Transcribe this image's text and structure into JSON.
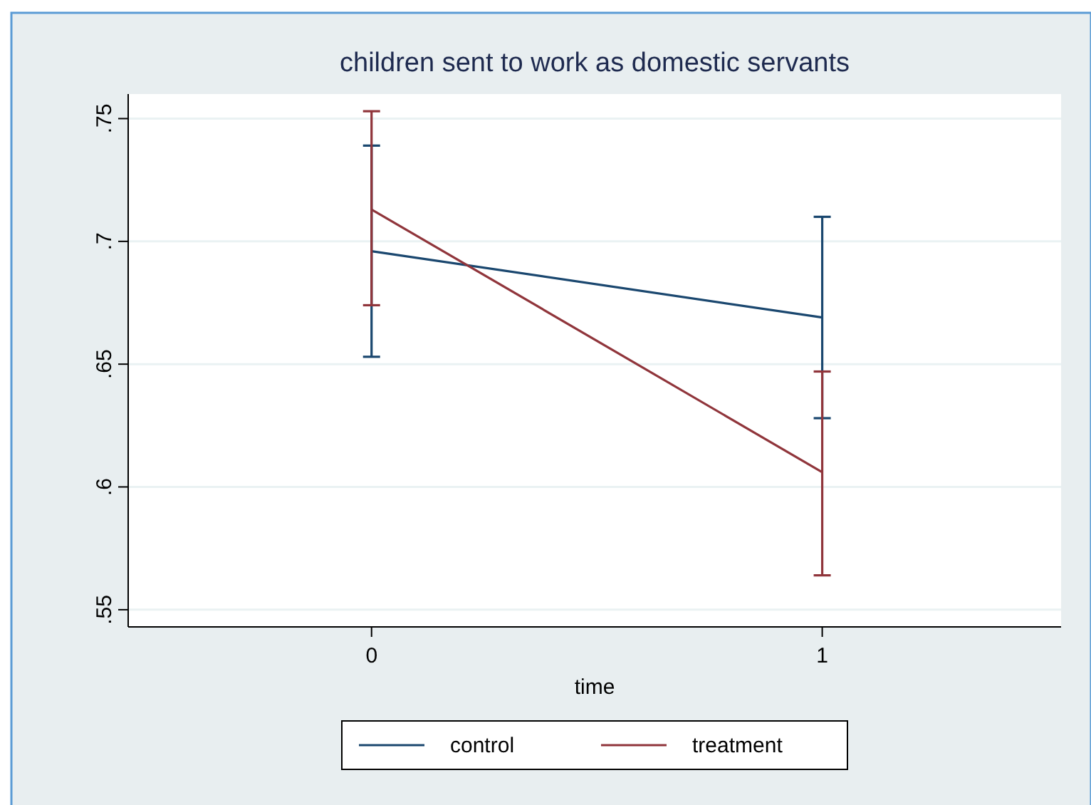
{
  "chart_data": {
    "type": "line",
    "title": "children sent to work as domestic servants",
    "xlabel": "time",
    "x": [
      0,
      1
    ],
    "xlim": [
      -0.54,
      1.53
    ],
    "xticks": [
      0,
      1
    ],
    "ylim": [
      0.543,
      0.76
    ],
    "yticks": [
      {
        "value": 0.55,
        "label": ".55"
      },
      {
        "value": 0.6,
        "label": ".6"
      },
      {
        "value": 0.65,
        "label": ".65"
      },
      {
        "value": 0.7,
        "label": ".7"
      },
      {
        "value": 0.75,
        "label": ".75"
      }
    ],
    "series": [
      {
        "name": "control",
        "color": "#1a476f",
        "values": [
          0.696,
          0.669
        ],
        "errors": [
          [
            0.653,
            0.739
          ],
          [
            0.628,
            0.71
          ]
        ]
      },
      {
        "name": "treatment",
        "color": "#90353b",
        "values": [
          0.713,
          0.606
        ],
        "errors": [
          [
            0.674,
            0.753
          ],
          [
            0.564,
            0.647
          ]
        ]
      }
    ],
    "grid": "y",
    "legend": "bottom",
    "marker": "none",
    "line_style": "solid"
  }
}
